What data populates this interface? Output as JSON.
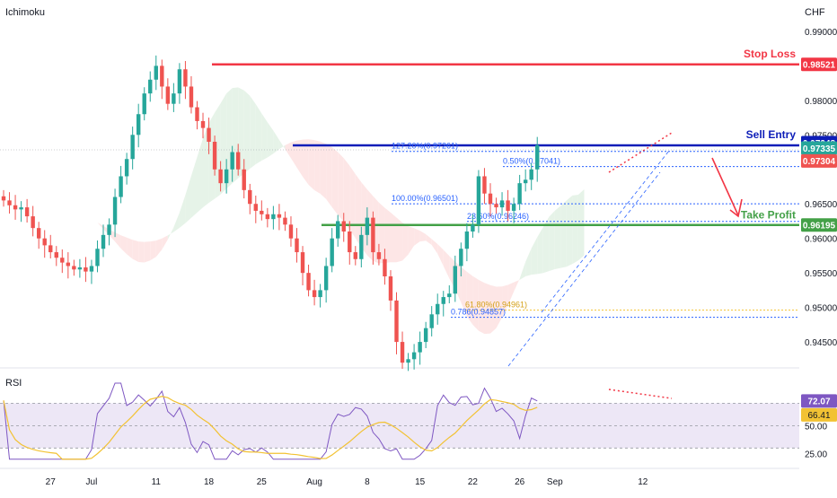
{
  "header": {
    "indicator": "Ichimoku",
    "currency": "CHF"
  },
  "rsi_pane": {
    "label": "RSI"
  },
  "colors": {
    "up": "#26a69a",
    "down": "#ef5350",
    "stop": "#f23645",
    "entry": "#0d1db8",
    "tp": "#43a047",
    "fib": "#2962ff",
    "rsi": "#7e57c2",
    "rsi_ma": "#f2c233",
    "band": "#ede7f6",
    "cloud_bull": "#e6f3e8",
    "cloud_bear": "#fde6e6"
  },
  "chart_data": [
    {
      "type": "candlestick",
      "ylim": [
        0.9415,
        0.9935
      ],
      "yticks": [
        {
          "v": 0.99,
          "label": "0.99000"
        },
        {
          "v": 0.98,
          "label": "0.98000"
        },
        {
          "v": 0.975,
          "label": "0.97500"
        },
        {
          "v": 0.965,
          "label": "0.96500"
        },
        {
          "v": 0.96,
          "label": "0.96000"
        },
        {
          "v": 0.955,
          "label": "0.95500"
        },
        {
          "v": 0.95,
          "label": "0.95000"
        },
        {
          "v": 0.945,
          "label": "0.94500"
        }
      ],
      "xticks": [
        {
          "i": 8,
          "label": "27"
        },
        {
          "i": 15,
          "label": "Jul"
        },
        {
          "i": 26,
          "label": "11"
        },
        {
          "i": 35,
          "label": "18"
        },
        {
          "i": 44,
          "label": "25"
        },
        {
          "i": 53,
          "label": "Aug"
        },
        {
          "i": 62,
          "label": "8"
        },
        {
          "i": 71,
          "label": "15"
        },
        {
          "i": 80,
          "label": "22"
        },
        {
          "i": 88,
          "label": "26"
        },
        {
          "i": 94,
          "label": "Sep"
        },
        {
          "i": 109,
          "label": "12"
        }
      ],
      "closes": [
        0.9655,
        0.9648,
        0.9642,
        0.9645,
        0.9632,
        0.9615,
        0.96,
        0.959,
        0.958,
        0.9572,
        0.9565,
        0.956,
        0.9555,
        0.9558,
        0.9552,
        0.956,
        0.9585,
        0.9605,
        0.962,
        0.966,
        0.969,
        0.9715,
        0.975,
        0.978,
        0.981,
        0.983,
        0.985,
        0.982,
        0.9795,
        0.981,
        0.9845,
        0.982,
        0.979,
        0.977,
        0.976,
        0.974,
        0.97,
        0.968,
        0.97,
        0.9725,
        0.97,
        0.967,
        0.965,
        0.964,
        0.9635,
        0.9628,
        0.9635,
        0.963,
        0.962,
        0.96,
        0.958,
        0.955,
        0.9525,
        0.9515,
        0.9525,
        0.956,
        0.96,
        0.9625,
        0.961,
        0.958,
        0.957,
        0.9605,
        0.963,
        0.958,
        0.957,
        0.9545,
        0.951,
        0.945,
        0.942,
        0.9425,
        0.9435,
        0.945,
        0.947,
        0.949,
        0.9505,
        0.9515,
        0.952,
        0.956,
        0.9585,
        0.961,
        0.962,
        0.969,
        0.9665,
        0.965,
        0.9645,
        0.9655,
        0.964,
        0.965,
        0.968,
        0.9685,
        0.97,
        0.9735
      ],
      "levels": [
        {
          "name": "stop",
          "price": 0.98521,
          "label": "0.98521",
          "tag": "Stop Loss"
        },
        {
          "name": "entry",
          "price": 0.97348,
          "label": "0.97348",
          "tag": "Sell Entry"
        },
        {
          "name": "tp",
          "price": 0.96195,
          "label": "0.96195",
          "tag": "Take Profit"
        }
      ],
      "price_tags": [
        {
          "price": 0.97335,
          "label": "0.97335"
        },
        {
          "price": 0.97304,
          "label": "0.97304"
        }
      ],
      "fib_lines": [
        {
          "price": 0.97261,
          "label": "127.20%(0.97261)"
        },
        {
          "price": 0.97041,
          "label": "0.50%(0.97041)"
        },
        {
          "price": 0.96501,
          "label": "100.00%(0.96501)"
        },
        {
          "price": 0.96246,
          "label": "23.60%(0.96246)"
        },
        {
          "price": 0.94961,
          "label": "61.80%(0.94961)"
        },
        {
          "price": 0.94857,
          "label": "0.786(0.94857)"
        }
      ]
    },
    {
      "type": "line",
      "title": "RSI",
      "ylim": [
        15,
        100
      ],
      "yticks": [
        {
          "v": 50,
          "label": "50.00"
        },
        {
          "v": 25,
          "label": "25.00"
        }
      ],
      "band": [
        30,
        70
      ],
      "value_tags": [
        {
          "v": 72.07,
          "label": "72.07"
        },
        {
          "v": 66.41,
          "label": "66.41"
        }
      ]
    }
  ]
}
